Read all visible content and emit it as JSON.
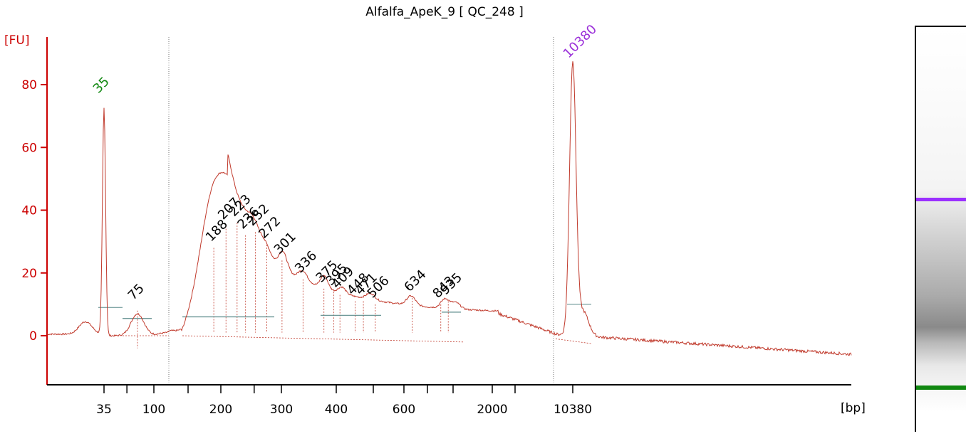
{
  "chart_data": {
    "type": "line",
    "title": "Alfalfa_ApeK_9  [ QC_248 ]",
    "ylabel": "[FU]",
    "xlabel": "[bp]",
    "ylim": [
      -15,
      95
    ],
    "yticks": [
      "0",
      "20",
      "40",
      "60",
      "80"
    ],
    "xticks": [
      "35",
      "100",
      "200",
      "300",
      "400",
      "600",
      "2000",
      "10380"
    ],
    "grid": false,
    "series": [
      {
        "color": "#c0392b",
        "x": [
          "25",
          "30",
          "35",
          "50",
          "75",
          "100",
          "150",
          "175",
          "188",
          "200",
          "207",
          "223",
          "236",
          "252",
          "272",
          "301",
          "336",
          "375",
          "395",
          "409",
          "448",
          "471",
          "506",
          "634",
          "800",
          "843",
          "935",
          "1200",
          "2000",
          "5000",
          "10380",
          "15000",
          "50000"
        ],
        "y": [
          1,
          5,
          73,
          1,
          8,
          1,
          2,
          18,
          28,
          33,
          35,
          36,
          32,
          33,
          29,
          24,
          18,
          15,
          14,
          13,
          11,
          11,
          10,
          12,
          10,
          10,
          11,
          6,
          3,
          1,
          86,
          0,
          -6
        ]
      }
    ],
    "peaks": [
      {
        "label": "35",
        "bp": 35,
        "fu": 73,
        "color": "#118811"
      },
      {
        "label": "75",
        "bp": 75,
        "fu": 8,
        "color": "#000000"
      },
      {
        "label": "188",
        "bp": 188,
        "fu": 28,
        "color": "#000000"
      },
      {
        "label": "207",
        "bp": 207,
        "fu": 35,
        "color": "#000000"
      },
      {
        "label": "223",
        "bp": 223,
        "fu": 36,
        "color": "#000000"
      },
      {
        "label": "236",
        "bp": 236,
        "fu": 32,
        "color": "#000000"
      },
      {
        "label": "252",
        "bp": 252,
        "fu": 33,
        "color": "#000000"
      },
      {
        "label": "272",
        "bp": 272,
        "fu": 29,
        "color": "#000000"
      },
      {
        "label": "301",
        "bp": 301,
        "fu": 24,
        "color": "#000000"
      },
      {
        "label": "336",
        "bp": 336,
        "fu": 18,
        "color": "#000000"
      },
      {
        "label": "375",
        "bp": 375,
        "fu": 15,
        "color": "#000000"
      },
      {
        "label": "395",
        "bp": 395,
        "fu": 14,
        "color": "#000000"
      },
      {
        "label": "409",
        "bp": 409,
        "fu": 13,
        "color": "#000000"
      },
      {
        "label": "448",
        "bp": 448,
        "fu": 11,
        "color": "#000000"
      },
      {
        "label": "471",
        "bp": 471,
        "fu": 11,
        "color": "#000000"
      },
      {
        "label": "506",
        "bp": 506,
        "fu": 10,
        "color": "#000000"
      },
      {
        "label": "634",
        "bp": 634,
        "fu": 12,
        "color": "#000000"
      },
      {
        "label": "843",
        "bp": 843,
        "fu": 10,
        "color": "#000000"
      },
      {
        "label": "935",
        "bp": 935,
        "fu": 11,
        "color": "#000000"
      },
      {
        "label": "10380",
        "bp": 10380,
        "fu": 86,
        "color": "#9b30d9"
      }
    ],
    "markers": [
      "lower marker 35 bp",
      "upper marker 10380 bp"
    ]
  },
  "gel": {
    "upper_marker_color": "#9b30ff",
    "lower_marker_color": "#118811"
  },
  "colors": {
    "axis": "#cc0000",
    "trace": "#c0392b",
    "baseline": "#5a8a8a"
  }
}
